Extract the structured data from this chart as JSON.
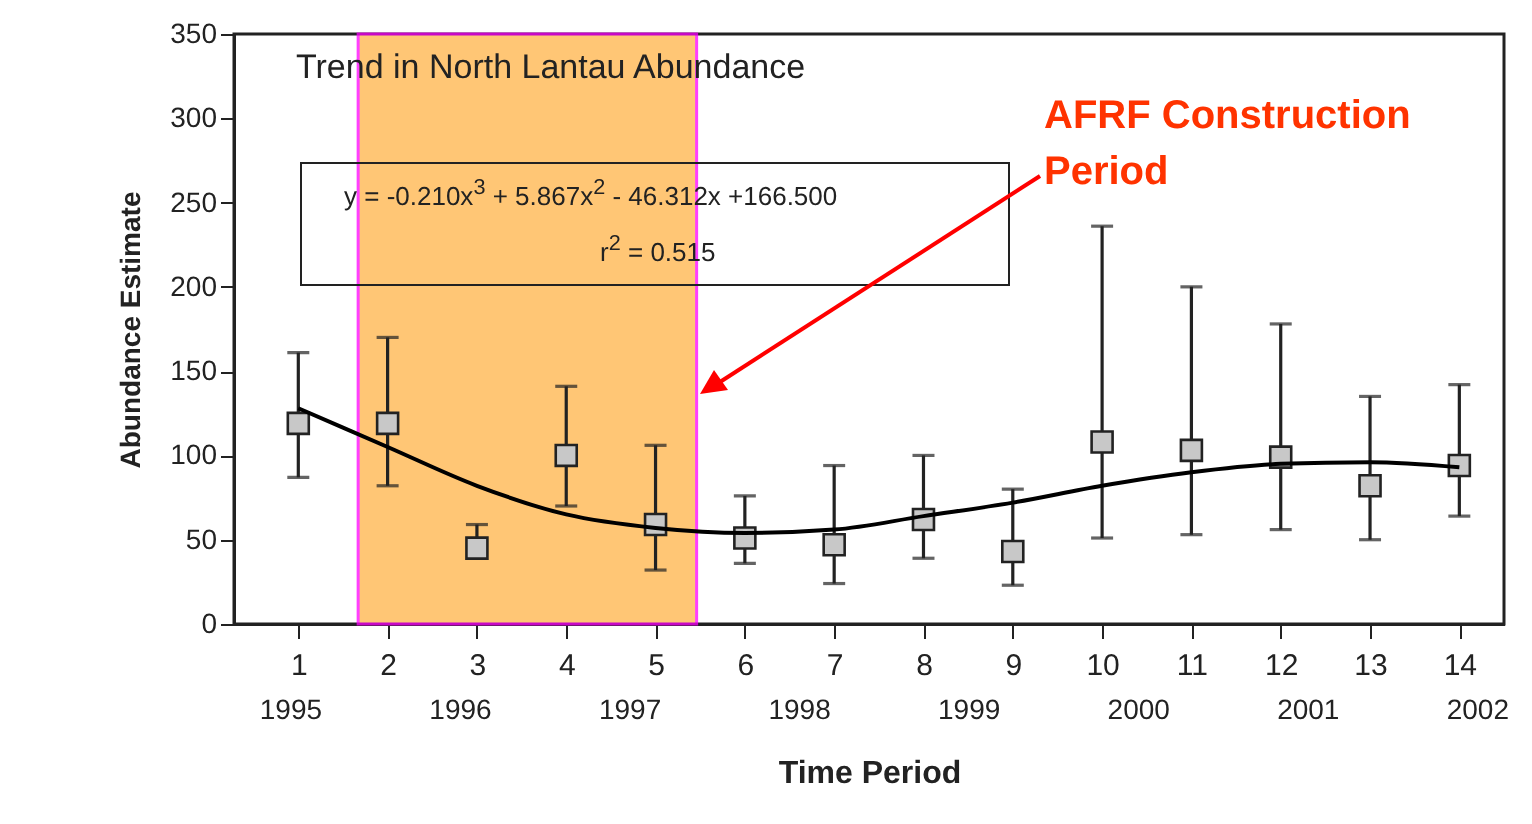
{
  "chart_data": {
    "type": "scatter",
    "title": "Trend in North Lantau Abundance",
    "xlabel": "Time Period",
    "ylabel": "Abundance Estimate",
    "xlim": [
      0.28,
      14.5
    ],
    "xticks": [
      1,
      2,
      3,
      4,
      5,
      6,
      7,
      8,
      9,
      10,
      11,
      12,
      13,
      14
    ],
    "x2lim": [
      1994.67,
      2002.16
    ],
    "x2ticks": [
      1995,
      1996,
      1997,
      1998,
      1999,
      2000,
      2001,
      2002
    ],
    "ylim": [
      0,
      350
    ],
    "yticks": [
      0,
      50,
      100,
      150,
      200,
      250,
      300,
      350
    ],
    "series": [
      {
        "color": "#c8c8c8",
        "marker": "square",
        "x": [
          1,
          2,
          3,
          4,
          5,
          6,
          7,
          8,
          9,
          10,
          11,
          12,
          13,
          14
        ],
        "values": [
          119,
          119,
          45,
          100,
          59,
          51,
          47,
          62,
          43,
          108,
          103,
          99,
          82,
          94
        ],
        "errors": [
          [
            87,
            161
          ],
          [
            82,
            170
          ],
          [
            45,
            59
          ],
          [
            70,
            141
          ],
          [
            32,
            106
          ],
          [
            36,
            76
          ],
          [
            24,
            94
          ],
          [
            39,
            100
          ],
          [
            23,
            80
          ],
          [
            51,
            236
          ],
          [
            53,
            200
          ],
          [
            56,
            178
          ],
          [
            50,
            135
          ],
          [
            64,
            142
          ]
        ]
      },
      {
        "type": "line",
        "color": "#000000",
        "x": [
          1,
          2,
          3,
          4,
          5,
          6,
          7,
          8,
          9,
          10,
          11,
          12,
          13,
          14
        ],
        "values": [
          128,
          105,
          82,
          65,
          57,
          54,
          56,
          64,
          72,
          82,
          90,
          95,
          96,
          93
        ]
      }
    ],
    "bands": [
      {
        "axis": "x",
        "from": 1.67,
        "to": 5.46,
        "color": "#ffb347"
      }
    ],
    "annotations": [
      "y = -0.210x$^{3}$ + 5.867x$^{2}$ - 46.312x +166.500",
      "r$^{2}$ = 0.515",
      "AFRF Construction Period"
    ]
  }
}
